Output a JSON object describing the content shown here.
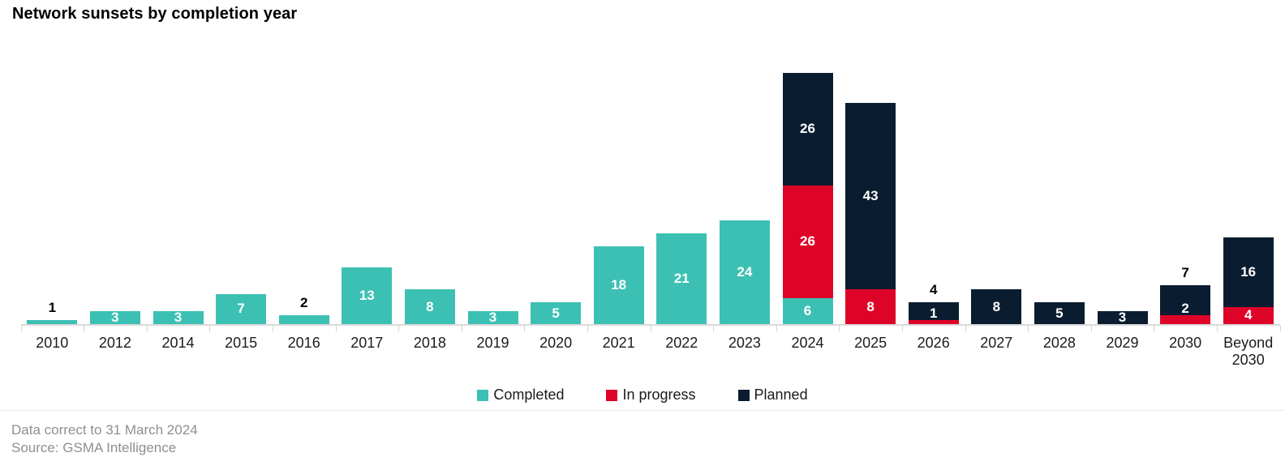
{
  "title": "Network sunsets by completion year",
  "legend": [
    {
      "label": "Completed",
      "color": "#3DC0B4",
      "icon": "completed-swatch-icon"
    },
    {
      "label": "In progress",
      "color": "#DE0428",
      "icon": "in-progress-swatch-icon"
    },
    {
      "label": "Planned",
      "color": "#0A1D30",
      "icon": "planned-swatch-icon"
    }
  ],
  "footer": {
    "line1": "Data correct to 31 March 2024",
    "line2": "Source: GSMA Intelligence"
  },
  "colors": {
    "axis": "#d9d9d9",
    "tick": "#d2d2d2",
    "label_inside": "#ffffff",
    "label_outside": "#000000"
  },
  "chart_data": {
    "type": "bar",
    "stacked": true,
    "title": "Network sunsets by completion year",
    "xlabel": "",
    "ylabel": "",
    "ylim": [
      0,
      60
    ],
    "grid": false,
    "legend_position": "bottom",
    "value_labels": true,
    "categories": [
      "2010",
      "2012",
      "2014",
      "2015",
      "2016",
      "2017",
      "2018",
      "2019",
      "2020",
      "2021",
      "2022",
      "2023",
      "2024",
      "2025",
      "2026",
      "2027",
      "2028",
      "2029",
      "2030",
      "Beyond 2030"
    ],
    "series": [
      {
        "name": "Completed",
        "color": "#3DC0B4",
        "values": [
          1,
          3,
          3,
          7,
          2,
          13,
          8,
          3,
          5,
          18,
          21,
          24,
          6,
          0,
          0,
          0,
          0,
          0,
          0,
          0
        ]
      },
      {
        "name": "In progress",
        "color": "#DE0428",
        "values": [
          0,
          0,
          0,
          0,
          0,
          0,
          0,
          0,
          0,
          0,
          0,
          0,
          26,
          8,
          1,
          0,
          0,
          0,
          2,
          4
        ]
      },
      {
        "name": "Planned",
        "color": "#0A1D30",
        "values": [
          0,
          0,
          0,
          0,
          0,
          0,
          0,
          0,
          0,
          0,
          0,
          0,
          26,
          43,
          4,
          8,
          5,
          3,
          7,
          16
        ]
      }
    ],
    "totals": [
      1,
      3,
      3,
      7,
      2,
      13,
      8,
      3,
      5,
      18,
      21,
      24,
      58,
      51,
      5,
      8,
      5,
      3,
      9,
      20
    ]
  }
}
